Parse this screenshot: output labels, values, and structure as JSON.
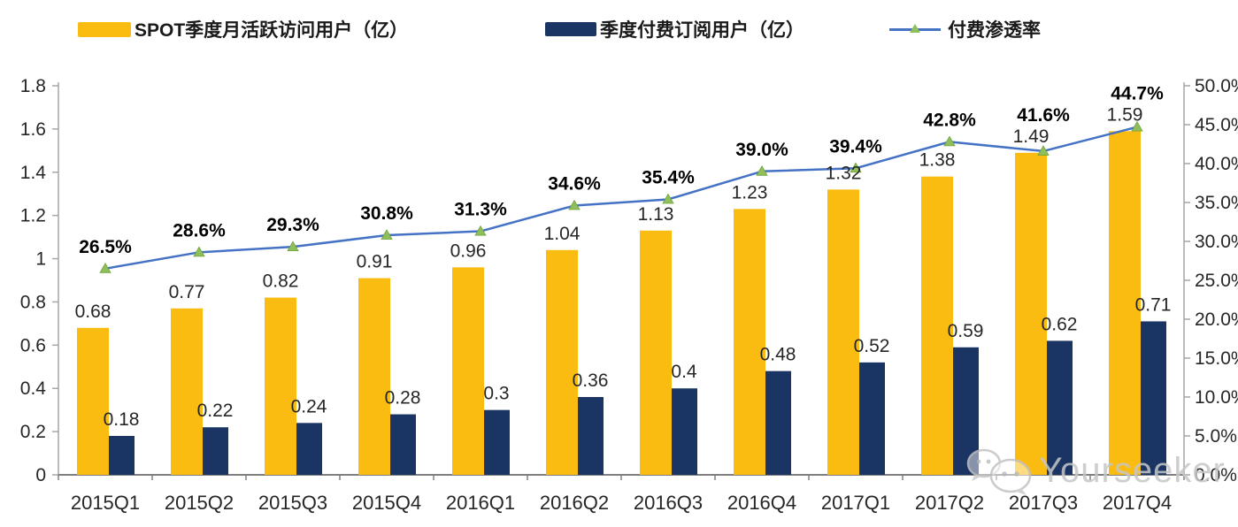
{
  "legend": {
    "items": [
      {
        "label": "SPOT季度月活跃访问用户（亿）",
        "swatch_color": "#FBBC12",
        "type": "bar"
      },
      {
        "label": "季度付费订阅用户（亿）",
        "swatch_color": "#1A3464",
        "type": "bar"
      },
      {
        "label": "付费渗透率",
        "line_color": "#4472C4",
        "marker_color": "#8FBE5A",
        "type": "line"
      }
    ]
  },
  "watermark": {
    "icon": "wechat-icon",
    "text": "Yourseeker"
  },
  "chart_data": {
    "type": "bar+line",
    "categories": [
      "2015Q1",
      "2015Q2",
      "2015Q3",
      "2015Q4",
      "2016Q1",
      "2016Q2",
      "2016Q3",
      "2016Q4",
      "2017Q1",
      "2017Q2",
      "2017Q3",
      "2017Q4"
    ],
    "series": [
      {
        "name": "SPOT季度月活跃访问用户（亿）",
        "type": "bar",
        "axis": "left",
        "color": "#FBBC12",
        "values": [
          0.68,
          0.77,
          0.82,
          0.91,
          0.96,
          1.04,
          1.13,
          1.23,
          1.32,
          1.38,
          1.49,
          1.59
        ],
        "labels": [
          "0.68",
          "0.77",
          "0.82",
          "0.91",
          "0.96",
          "1.04",
          "1.13",
          "1.23",
          "1.32",
          "1.38",
          "1.49",
          "1.59"
        ]
      },
      {
        "name": "季度付费订阅用户（亿）",
        "type": "bar",
        "axis": "left",
        "color": "#1A3464",
        "values": [
          0.18,
          0.22,
          0.24,
          0.28,
          0.3,
          0.36,
          0.4,
          0.48,
          0.52,
          0.59,
          0.62,
          0.71
        ],
        "labels": [
          "0.18",
          "0.22",
          "0.24",
          "0.28",
          "0.3",
          "0.36",
          "0.4",
          "0.48",
          "0.52",
          "0.59",
          "0.62",
          "0.71"
        ]
      },
      {
        "name": "付费渗透率",
        "type": "line",
        "axis": "right",
        "color": "#4472C4",
        "marker": "triangle",
        "marker_color": "#8FBE5A",
        "values": [
          26.5,
          28.6,
          29.3,
          30.8,
          31.3,
          34.6,
          35.4,
          39.0,
          39.4,
          42.8,
          41.6,
          44.7
        ],
        "labels": [
          "26.5%",
          "28.6%",
          "29.3%",
          "30.8%",
          "31.3%",
          "34.6%",
          "35.4%",
          "39.0%",
          "39.4%",
          "42.8%",
          "41.6%",
          "44.7%"
        ]
      }
    ],
    "left_axis": {
      "min": 0,
      "max": 1.8,
      "step": 0.2,
      "tick_labels": [
        "0",
        "0.2",
        "0.4",
        "0.6",
        "0.8",
        "1",
        "1.2",
        "1.4",
        "1.6",
        "1.8"
      ]
    },
    "right_axis": {
      "min": 0,
      "max": 50,
      "step": 5,
      "tick_labels": [
        "0.0%",
        "5.0%",
        "10.0%",
        "15.0%",
        "20.0%",
        "25.0%",
        "30.0%",
        "35.0%",
        "40.0%",
        "45.0%",
        "50.0%"
      ]
    },
    "grid": false,
    "legend_position": "top"
  }
}
